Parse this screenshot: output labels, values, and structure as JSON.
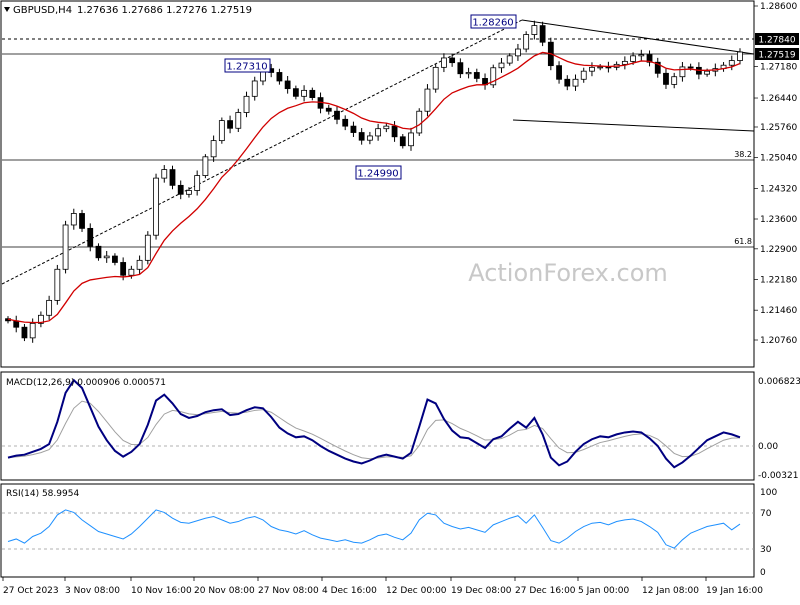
{
  "header": {
    "symbol": "GBPUSD,H4",
    "ohlc": "1.27636 1.27686 1.27276 1.27519"
  },
  "watermark": "ActionForex.com",
  "colors": {
    "candle": "#000000",
    "ma": "#d10000",
    "trendline": "#000000",
    "macd": "#000080",
    "signal": "#a0a0a0",
    "rsi": "#1e90ff",
    "price_tag_bg": "#000000",
    "price_tag_fg": "#ffffff"
  },
  "price_panel": {
    "price_scale": [
      "1.28600",
      "1.27840",
      "1.27180",
      "1.26440",
      "1.25760",
      "1.25040",
      "1.24320",
      "1.23600",
      "1.22900",
      "1.22180",
      "1.21460",
      "1.20760"
    ],
    "current_price": "1.27519",
    "level_price": "1.27840",
    "fib_38": "38.2",
    "fib_61": "61.8",
    "labels": {
      "high_nov": "1.27310",
      "low_dec": "1.24990",
      "high_dec": "1.28260"
    }
  },
  "macd_panel": {
    "title": "MACD(12,26,9) 0.000906 0.000571",
    "scale": [
      "0.006823",
      "0.00",
      "-0.00321"
    ]
  },
  "rsi_panel": {
    "title": "RSI(14) 58.9954",
    "scale": [
      "100",
      "70",
      "30",
      "0"
    ]
  },
  "x_axis": [
    "27 Oct 2023",
    "3 Nov 08:00",
    "10 Nov 16:00",
    "20 Nov 08:00",
    "27 Nov 08:00",
    "4 Dec 16:00",
    "12 Dec 00:00",
    "19 Dec 08:00",
    "27 Dec 16:00",
    "5 Jan 00:00",
    "12 Jan 08:00",
    "19 Jan 16:00"
  ],
  "chart_data": {
    "type": "candlestick",
    "title": "",
    "price_closes": [
      1.2121,
      1.2106,
      1.2081,
      1.2115,
      1.2134,
      1.2169,
      1.2242,
      1.2346,
      1.2373,
      1.2338,
      1.2296,
      1.2269,
      1.2273,
      1.2258,
      1.2228,
      1.2242,
      1.2263,
      1.2322,
      1.2456,
      1.2476,
      1.2439,
      1.2418,
      1.2427,
      1.2462,
      1.2506,
      1.2544,
      1.2591,
      1.2573,
      1.261,
      1.2648,
      1.2684,
      1.2713,
      1.2704,
      1.2684,
      1.2666,
      1.2648,
      1.2662,
      1.2645,
      1.262,
      1.2613,
      1.2594,
      1.2578,
      1.2563,
      1.2545,
      1.2555,
      1.2572,
      1.2578,
      1.2553,
      1.2532,
      1.2562,
      1.2613,
      1.2665,
      1.2716,
      1.2738,
      1.2727,
      1.2701,
      1.2704,
      1.269,
      1.2675,
      1.2715,
      1.2726,
      1.2743,
      1.2759,
      1.2793,
      1.2814,
      1.2775,
      1.272,
      1.2688,
      1.2672,
      1.2688,
      1.2707,
      1.2716,
      1.2717,
      1.2716,
      1.2723,
      1.273,
      1.2743,
      1.2746,
      1.2728,
      1.2702,
      1.2676,
      1.2694,
      1.2717,
      1.2716,
      1.27,
      1.2707,
      1.2713,
      1.2721,
      1.2732,
      1.2752
    ],
    "ma_values": [
      1.2125,
      1.2121,
      1.2118,
      1.2117,
      1.2117,
      1.2121,
      1.2136,
      1.2163,
      1.2191,
      1.2209,
      1.2217,
      1.222,
      1.2223,
      1.2225,
      1.2224,
      1.2226,
      1.223,
      1.2246,
      1.2279,
      1.231,
      1.2332,
      1.235,
      1.2366,
      1.2384,
      1.2406,
      1.2431,
      1.2458,
      1.2477,
      1.25,
      1.2525,
      1.2551,
      1.2576,
      1.2596,
      1.261,
      1.262,
      1.2626,
      1.2633,
      1.2635,
      1.2634,
      1.2631,
      1.2625,
      1.2617,
      1.2608,
      1.2597,
      1.259,
      1.2587,
      1.2585,
      1.258,
      1.2573,
      1.2571,
      1.2581,
      1.2598,
      1.2619,
      1.2641,
      1.2656,
      1.2664,
      1.2671,
      1.2675,
      1.2675,
      1.2683,
      1.2693,
      1.2703,
      1.2714,
      1.2729,
      1.2743,
      1.2751,
      1.2748,
      1.2739,
      1.273,
      1.2724,
      1.2721,
      1.272,
      1.2719,
      1.2718,
      1.2719,
      1.2721,
      1.2726,
      1.2731,
      1.273,
      1.2724,
      1.2714,
      1.271,
      1.2711,
      1.2712,
      1.2709,
      1.2709,
      1.271,
      1.2713,
      1.2717,
      1.2725
    ],
    "macd": [
      -0.0012,
      -0.001,
      -0.0009,
      -0.0006,
      -0.0003,
      0.0002,
      0.0025,
      0.0055,
      0.0068,
      0.006,
      0.004,
      0.002,
      0.0006,
      -0.0005,
      -0.0011,
      -0.0006,
      0.0002,
      0.0022,
      0.0047,
      0.0053,
      0.0044,
      0.0033,
      0.0029,
      0.0031,
      0.0035,
      0.0037,
      0.0038,
      0.0032,
      0.0033,
      0.0037,
      0.004,
      0.0039,
      0.003,
      0.0019,
      0.0013,
      0.0009,
      0.001,
      0.0006,
      0.0,
      -0.0005,
      -0.0009,
      -0.0013,
      -0.0016,
      -0.0018,
      -0.0015,
      -0.0011,
      -0.0009,
      -0.0011,
      -0.0013,
      -0.0007,
      0.002,
      0.0048,
      0.0044,
      0.0028,
      0.0016,
      0.0009,
      0.0008,
      0.0003,
      -0.0002,
      0.0007,
      0.001,
      0.0018,
      0.0025,
      0.0019,
      0.0029,
      0.0012,
      -0.0012,
      -0.002,
      -0.0016,
      -0.0006,
      0.0002,
      0.0007,
      0.001,
      0.0009,
      0.0012,
      0.0014,
      0.0015,
      0.0014,
      0.0008,
      0.0,
      -0.0013,
      -0.0022,
      -0.0017,
      -0.001,
      -0.0002,
      0.0006,
      0.001,
      0.0014,
      0.0012,
      0.0009
    ],
    "rsi": [
      38,
      41,
      36,
      44,
      48,
      56,
      70,
      76,
      73,
      64,
      57,
      50,
      47,
      44,
      41,
      47,
      56,
      66,
      76,
      73,
      66,
      61,
      60,
      63,
      66,
      68,
      64,
      60,
      62,
      66,
      68,
      64,
      56,
      52,
      50,
      47,
      51,
      46,
      42,
      40,
      38,
      40,
      37,
      36,
      40,
      45,
      47,
      43,
      40,
      48,
      64,
      72,
      70,
      60,
      56,
      53,
      55,
      52,
      49,
      58,
      62,
      66,
      69,
      60,
      70,
      55,
      39,
      36,
      42,
      50,
      56,
      60,
      61,
      58,
      62,
      64,
      65,
      62,
      56,
      49,
      34,
      30,
      40,
      48,
      52,
      56,
      58,
      60,
      52,
      59
    ]
  }
}
